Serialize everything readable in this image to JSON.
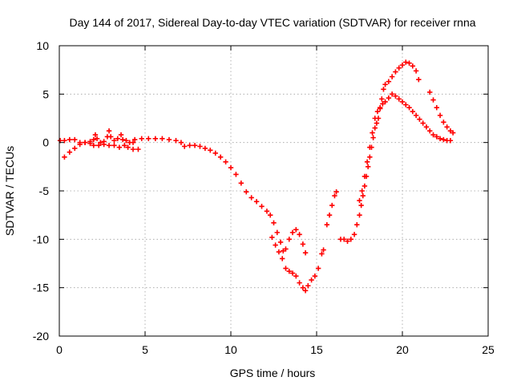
{
  "chart_data": {
    "type": "scatter",
    "title": "Day 144 of 2017, Sidereal Day-to-day VTEC variation (SDTVAR) for receiver rnna",
    "xlabel": "GPS time / hours",
    "ylabel": "SDTVAR / TECUs",
    "xlim": [
      0,
      25
    ],
    "ylim": [
      -20,
      10
    ],
    "xticks": [
      0,
      5,
      10,
      15,
      20,
      25
    ],
    "yticks": [
      -20,
      -15,
      -10,
      -5,
      0,
      5,
      10
    ],
    "grid": true,
    "marker": "+",
    "color": "#ff0000",
    "series": [
      {
        "segments": [
          [
            [
              0.05,
              0.2
            ],
            [
              0.3,
              0.2
            ],
            [
              0.6,
              0.3
            ],
            [
              0.9,
              0.3
            ],
            [
              1.2,
              0.0
            ],
            [
              1.5,
              0.0
            ],
            [
              1.8,
              0.1
            ],
            [
              2.0,
              0.3
            ],
            [
              2.1,
              0.8
            ],
            [
              2.2,
              0.4
            ],
            [
              2.4,
              0.0
            ],
            [
              2.6,
              0.1
            ],
            [
              2.8,
              0.6
            ],
            [
              2.9,
              1.2
            ],
            [
              3.0,
              0.6
            ],
            [
              3.2,
              0.2
            ],
            [
              3.4,
              0.4
            ],
            [
              3.6,
              0.8
            ],
            [
              3.7,
              0.3
            ],
            [
              3.9,
              0.2
            ],
            [
              4.1,
              0.0
            ],
            [
              4.3,
              0.0
            ]
          ],
          [
            [
              0.3,
              -1.5
            ],
            [
              0.6,
              -1.0
            ],
            [
              0.9,
              -0.6
            ],
            [
              1.2,
              -0.2
            ],
            [
              1.5,
              0.0
            ],
            [
              1.8,
              -0.1
            ],
            [
              2.0,
              -0.3
            ],
            [
              2.3,
              -0.3
            ],
            [
              2.6,
              -0.2
            ],
            [
              2.9,
              -0.3
            ],
            [
              3.2,
              -0.3
            ],
            [
              3.5,
              -0.5
            ],
            [
              3.8,
              -0.3
            ],
            [
              4.0,
              -0.5
            ],
            [
              4.3,
              -0.7
            ],
            [
              4.6,
              -0.7
            ]
          ],
          [
            [
              4.4,
              0.3
            ],
            [
              4.8,
              0.4
            ],
            [
              5.2,
              0.4
            ],
            [
              5.6,
              0.4
            ],
            [
              6.0,
              0.4
            ],
            [
              6.4,
              0.3
            ],
            [
              6.8,
              0.2
            ],
            [
              7.1,
              0.0
            ],
            [
              7.3,
              -0.4
            ],
            [
              7.6,
              -0.3
            ],
            [
              7.9,
              -0.3
            ],
            [
              8.2,
              -0.4
            ],
            [
              8.5,
              -0.6
            ],
            [
              8.8,
              -0.8
            ],
            [
              9.1,
              -1.1
            ],
            [
              9.4,
              -1.5
            ],
            [
              9.7,
              -2.0
            ],
            [
              10.0,
              -2.6
            ],
            [
              10.3,
              -3.3
            ],
            [
              10.6,
              -4.2
            ],
            [
              10.9,
              -5.1
            ],
            [
              11.2,
              -5.7
            ],
            [
              11.5,
              -6.1
            ],
            [
              11.8,
              -6.6
            ],
            [
              12.1,
              -7.1
            ],
            [
              12.3,
              -7.5
            ],
            [
              12.5,
              -8.3
            ],
            [
              12.7,
              -9.3
            ],
            [
              12.9,
              -10.3
            ],
            [
              13.05,
              -11.2
            ],
            [
              13.2,
              -11.0
            ],
            [
              13.4,
              -10.0
            ],
            [
              13.6,
              -9.3
            ],
            [
              13.8,
              -9.0
            ],
            [
              14.0,
              -9.5
            ],
            [
              14.2,
              -10.5
            ],
            [
              14.35,
              -11.4
            ]
          ],
          [
            [
              12.4,
              -9.8
            ],
            [
              12.6,
              -10.6
            ],
            [
              12.8,
              -11.3
            ],
            [
              13.0,
              -12.0
            ],
            [
              13.2,
              -13.0
            ],
            [
              13.4,
              -13.3
            ],
            [
              13.6,
              -13.5
            ],
            [
              13.8,
              -13.8
            ],
            [
              14.0,
              -14.5
            ],
            [
              14.2,
              -15.0
            ],
            [
              14.35,
              -15.3
            ],
            [
              14.5,
              -14.8
            ],
            [
              14.7,
              -14.2
            ],
            [
              14.9,
              -13.8
            ],
            [
              15.1,
              -13.0
            ],
            [
              15.3,
              -11.5
            ],
            [
              15.4,
              -11.1
            ]
          ],
          [
            [
              15.6,
              -8.5
            ],
            [
              15.75,
              -7.5
            ],
            [
              15.9,
              -6.5
            ],
            [
              16.05,
              -5.5
            ],
            [
              16.15,
              -5.1
            ]
          ],
          [
            [
              16.4,
              -10.0
            ],
            [
              16.6,
              -10.0
            ],
            [
              16.8,
              -10.2
            ],
            [
              17.0,
              -10.0
            ],
            [
              17.2,
              -9.5
            ],
            [
              17.35,
              -8.5
            ],
            [
              17.5,
              -7.5
            ],
            [
              17.6,
              -6.5
            ],
            [
              17.7,
              -5.5
            ],
            [
              17.8,
              -4.5
            ],
            [
              17.9,
              -3.5
            ],
            [
              18.0,
              -2.5
            ],
            [
              18.1,
              -1.5
            ],
            [
              18.2,
              -0.5
            ],
            [
              18.3,
              0.5
            ],
            [
              18.4,
              1.5
            ],
            [
              18.5,
              2.0
            ],
            [
              18.6,
              2.5
            ],
            [
              18.7,
              3.5
            ],
            [
              18.8,
              4.5
            ],
            [
              18.9,
              5.5
            ],
            [
              19.0,
              6.0
            ],
            [
              19.2,
              6.3
            ],
            [
              19.4,
              6.8
            ],
            [
              19.6,
              7.3
            ],
            [
              19.8,
              7.7
            ],
            [
              20.0,
              8.0
            ],
            [
              20.2,
              8.3
            ],
            [
              20.4,
              8.2
            ],
            [
              20.6,
              7.9
            ],
            [
              20.8,
              7.4
            ],
            [
              20.95,
              6.5
            ]
          ],
          [
            [
              17.5,
              -6.0
            ],
            [
              17.65,
              -5.0
            ],
            [
              17.8,
              -3.5
            ],
            [
              17.95,
              -2.0
            ],
            [
              18.1,
              -0.5
            ],
            [
              18.25,
              1.0
            ],
            [
              18.4,
              2.5
            ],
            [
              18.55,
              3.2
            ],
            [
              18.7,
              3.6
            ],
            [
              18.85,
              4.0
            ],
            [
              19.0,
              4.2
            ],
            [
              19.2,
              4.6
            ],
            [
              19.4,
              5.0
            ],
            [
              19.6,
              4.8
            ],
            [
              19.8,
              4.5
            ],
            [
              20.0,
              4.2
            ],
            [
              20.2,
              3.9
            ],
            [
              20.4,
              3.6
            ]
          ],
          [
            [
              20.6,
              3.2
            ],
            [
              20.8,
              2.8
            ],
            [
              21.0,
              2.4
            ],
            [
              21.2,
              2.0
            ],
            [
              21.4,
              1.6
            ],
            [
              21.6,
              1.2
            ],
            [
              21.8,
              0.8
            ],
            [
              22.0,
              0.6
            ],
            [
              22.2,
              0.4
            ],
            [
              22.4,
              0.3
            ],
            [
              22.6,
              0.2
            ],
            [
              22.8,
              0.2
            ]
          ],
          [
            [
              21.6,
              5.2
            ],
            [
              21.8,
              4.4
            ],
            [
              22.0,
              3.6
            ],
            [
              22.2,
              2.8
            ],
            [
              22.4,
              2.1
            ],
            [
              22.6,
              1.6
            ],
            [
              22.8,
              1.2
            ],
            [
              22.95,
              1.0
            ]
          ]
        ]
      }
    ]
  }
}
